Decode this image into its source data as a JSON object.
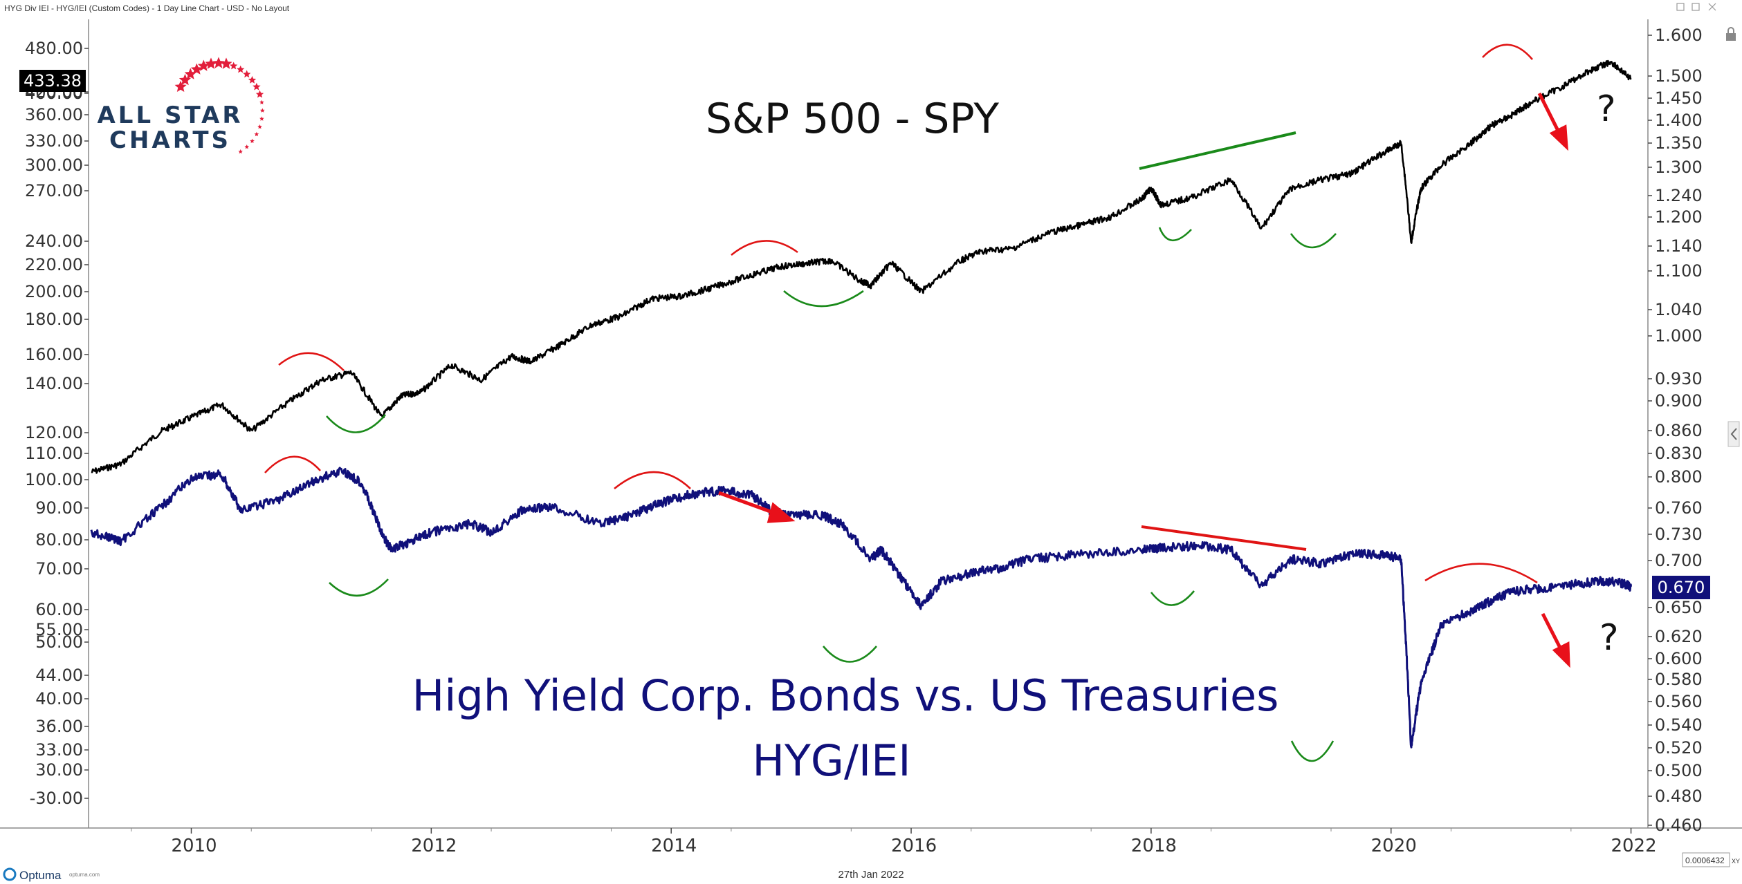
{
  "window": {
    "title": "HYG Div IEI - HYG/IEI (Custom Codes) - 1 Day Line Chart - USD - No Layout",
    "footer_date": "27th Jan 2022",
    "footer_brand": "Optuma",
    "footer_url": "optuma.com",
    "corner_value": "0.0006432",
    "corner_label": "XY"
  },
  "logo": {
    "line1": "ALL STAR",
    "line2": "CHARTS"
  },
  "colors": {
    "spy": "#000000",
    "ratio": "#10107a",
    "arc_red": "#e01414",
    "arc_green": "#1a8a1a",
    "arrow_red": "#e8101a",
    "axis": "#333333"
  },
  "chart_data": [
    {
      "type": "line",
      "title": "S&P 500 - SPY",
      "series": [
        {
          "name": "SPY",
          "x": [
            "2009-03",
            "2009-06",
            "2009-10",
            "2010-01",
            "2010-04",
            "2010-07",
            "2010-11",
            "2011-02",
            "2011-05",
            "2011-08",
            "2011-10",
            "2011-12",
            "2012-03",
            "2012-06",
            "2012-09",
            "2012-11",
            "2013-02",
            "2013-05",
            "2013-08",
            "2013-11",
            "2014-02",
            "2014-05",
            "2014-09",
            "2014-12",
            "2015-03",
            "2015-05",
            "2015-08",
            "2015-09",
            "2015-11",
            "2016-02",
            "2016-06",
            "2016-08",
            "2016-11",
            "2017-03",
            "2017-06",
            "2017-09",
            "2017-12",
            "2018-01",
            "2018-02",
            "2018-05",
            "2018-09",
            "2018-12",
            "2019-03",
            "2019-06",
            "2019-09",
            "2019-12",
            "2020-02",
            "2020-03",
            "2020-04",
            "2020-06",
            "2020-09",
            "2020-11",
            "2021-01",
            "2021-03",
            "2021-06",
            "2021-09",
            "2021-11",
            "2022-01"
          ],
          "values": [
            90,
            93,
            106,
            112,
            118,
            106,
            120,
            130,
            134,
            112,
            122,
            124,
            138,
            130,
            143,
            140,
            150,
            162,
            168,
            180,
            182,
            188,
            198,
            205,
            208,
            210,
            193,
            190,
            208,
            185,
            210,
            218,
            220,
            235,
            242,
            250,
            268,
            280,
            262,
            270,
            290,
            238,
            280,
            290,
            297,
            321,
            336,
            225,
            280,
            307,
            336,
            360,
            375,
            395,
            420,
            450,
            465,
            433.38
          ]
        }
      ],
      "ylim": [
        80,
        500
      ],
      "ylabel_ticks": [
        "480.00",
        "433.38",
        "420.00",
        "400.00",
        "360.00",
        "330.00",
        "300.00",
        "270.00",
        "240.00",
        "220.00",
        "200.00",
        "180.00",
        "160.00",
        "140.00",
        "120.00",
        "110.00",
        "100.00",
        "90.00",
        "80.00",
        "70.00",
        "60.00",
        "55.00",
        "50.00",
        "44.00",
        "40.00",
        "36.00",
        "33.00",
        "30.00",
        "-30.00"
      ],
      "last_value": "433.38"
    },
    {
      "type": "line",
      "title": "High Yield Corp. Bonds vs. US Treasuries",
      "subtitle": "HYG/IEI",
      "series": [
        {
          "name": "HYG/IEI",
          "x": [
            "2009-03",
            "2009-06",
            "2009-10",
            "2010-01",
            "2010-04",
            "2010-06",
            "2010-10",
            "2011-01",
            "2011-04",
            "2011-06",
            "2011-08",
            "2011-09",
            "2011-11",
            "2012-01",
            "2012-05",
            "2012-07",
            "2012-10",
            "2013-01",
            "2013-06",
            "2013-09",
            "2013-12",
            "2014-03",
            "2014-06",
            "2014-09",
            "2014-11",
            "2015-01",
            "2015-04",
            "2015-06",
            "2015-09",
            "2015-10",
            "2015-12",
            "2016-02",
            "2016-04",
            "2016-07",
            "2016-10",
            "2017-01",
            "2017-06",
            "2017-12",
            "2018-02",
            "2018-06",
            "2018-09",
            "2018-12",
            "2019-03",
            "2019-06",
            "2019-09",
            "2019-12",
            "2020-02",
            "2020-03",
            "2020-04",
            "2020-06",
            "2020-09",
            "2020-11",
            "2021-01",
            "2021-04",
            "2021-07",
            "2021-10",
            "2021-12",
            "2022-01"
          ],
          "values": [
            0.73,
            0.72,
            0.76,
            0.795,
            0.8,
            0.755,
            0.77,
            0.79,
            0.805,
            0.79,
            0.73,
            0.71,
            0.72,
            0.73,
            0.74,
            0.73,
            0.755,
            0.76,
            0.74,
            0.75,
            0.765,
            0.775,
            0.78,
            0.775,
            0.755,
            0.75,
            0.75,
            0.74,
            0.7,
            0.71,
            0.68,
            0.65,
            0.675,
            0.685,
            0.69,
            0.7,
            0.705,
            0.71,
            0.712,
            0.715,
            0.71,
            0.67,
            0.7,
            0.695,
            0.705,
            0.705,
            0.7,
            0.52,
            0.575,
            0.63,
            0.645,
            0.655,
            0.665,
            0.668,
            0.672,
            0.676,
            0.674,
            0.67
          ]
        }
      ],
      "ylim": [
        0.46,
        1.62
      ],
      "ylabel_ticks": [
        "1.600",
        "1.500",
        "1.450",
        "1.400",
        "1.350",
        "1.300",
        "1.240",
        "1.200",
        "1.140",
        "1.100",
        "1.040",
        "1.000",
        "0.930",
        "0.900",
        "0.860",
        "0.830",
        "0.800",
        "0.760",
        "0.730",
        "0.700",
        "0.670",
        "0.650",
        "0.620",
        "0.600",
        "0.580",
        "0.560",
        "0.540",
        "0.520",
        "0.500",
        "0.480",
        "0.460"
      ],
      "last_value": "0.670"
    }
  ],
  "x_axis": {
    "ticks": [
      "2010",
      "2012",
      "2014",
      "2016",
      "2018",
      "2020",
      "2022"
    ]
  },
  "annotations": {
    "question1": "?",
    "question2": "?"
  }
}
